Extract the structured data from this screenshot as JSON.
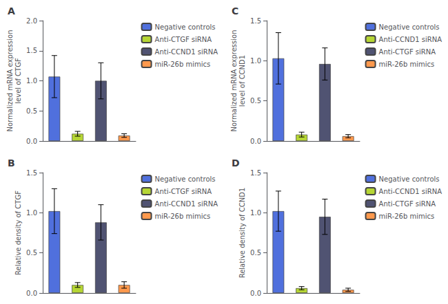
{
  "chart_data": [
    {
      "type": "bar",
      "title": "A",
      "ylabel": "Normalized mRNA expression\nlevel of CTGF",
      "ylim": [
        0,
        2.0
      ],
      "yticks": [
        {
          "value": 0.0,
          "label": "0.0"
        },
        0.5,
        {
          "value": 1.0,
          "label": "1.0"
        },
        1.5,
        {
          "value": 2.0,
          "label": "2.0"
        }
      ],
      "grid": false,
      "legend": "upper right",
      "tick_labels": "y",
      "series": [
        {
          "name": "Negative controls",
          "values": [
            1.07
          ],
          "errors": [
            0.35
          ]
        },
        {
          "name": "Anti-CTGF siRNA",
          "values": [
            0.12
          ],
          "errors": [
            0.04
          ]
        },
        {
          "name": "Anti-CCND1 siRNA",
          "values": [
            1.0
          ],
          "errors": [
            0.3
          ]
        },
        {
          "name": "miR-26b mimics",
          "values": [
            0.09
          ],
          "errors": [
            0.03
          ]
        }
      ]
    },
    {
      "type": "bar",
      "title": "C",
      "ylabel": "Normalized mRNA expression\nlevel of CCND1",
      "ylim": [
        0,
        1.5
      ],
      "yticks": [
        {
          "value": 0.0,
          "label": "0.0"
        },
        0.5,
        {
          "value": 1.0,
          "label": "1.0"
        },
        1.5
      ],
      "grid": false,
      "legend": "upper right",
      "tick_labels": "y",
      "series": [
        {
          "name": "Negative controls",
          "values": [
            1.03
          ],
          "errors": [
            0.32
          ]
        },
        {
          "name": "Anti-CCND1 siRNA",
          "values": [
            0.08
          ],
          "errors": [
            0.03
          ]
        },
        {
          "name": "Anti-CTGF siRNA",
          "values": [
            0.96
          ],
          "errors": [
            0.2
          ]
        },
        {
          "name": "miR-26b mimics",
          "values": [
            0.06
          ],
          "errors": [
            0.02
          ]
        }
      ]
    },
    {
      "type": "bar",
      "title": "B",
      "ylabel": "Relative density of CTGF",
      "ylim": [
        0,
        1.5
      ],
      "yticks": [
        {
          "value": 0.0,
          "label": "0.0"
        },
        0.5,
        {
          "value": 1.0,
          "label": "1.0"
        },
        1.5
      ],
      "grid": false,
      "legend": "upper right",
      "tick_labels": "y",
      "series": [
        {
          "name": "Negative controls",
          "values": [
            1.02
          ],
          "errors": [
            0.28
          ]
        },
        {
          "name": "Anti-CTGF siRNA",
          "values": [
            0.1
          ],
          "errors": [
            0.03
          ]
        },
        {
          "name": "Anti-CCND1 siRNA",
          "values": [
            0.88
          ],
          "errors": [
            0.22
          ]
        },
        {
          "name": "miR-26b mimics",
          "values": [
            0.1
          ],
          "errors": [
            0.04
          ]
        }
      ]
    },
    {
      "type": "bar",
      "title": "D",
      "ylabel": "Relative density of CCND1",
      "ylim": [
        0,
        1.5
      ],
      "yticks": [
        {
          "value": 0.0,
          "label": "0.0"
        },
        0.5,
        {
          "value": 1.0,
          "label": "1.0"
        },
        1.5
      ],
      "grid": false,
      "legend": "upper right",
      "tick_labels": "y",
      "series": [
        {
          "name": "Negative controls",
          "values": [
            1.02
          ],
          "errors": [
            0.25
          ]
        },
        {
          "name": "Anti-CCND1 siRNA",
          "values": [
            0.06
          ],
          "errors": [
            0.02
          ]
        },
        {
          "name": "Anti-CTGF siRNA",
          "values": [
            0.95
          ],
          "errors": [
            0.22
          ]
        },
        {
          "name": "miR-26b mimics",
          "values": [
            0.04
          ],
          "errors": [
            0.02
          ]
        }
      ]
    }
  ]
}
